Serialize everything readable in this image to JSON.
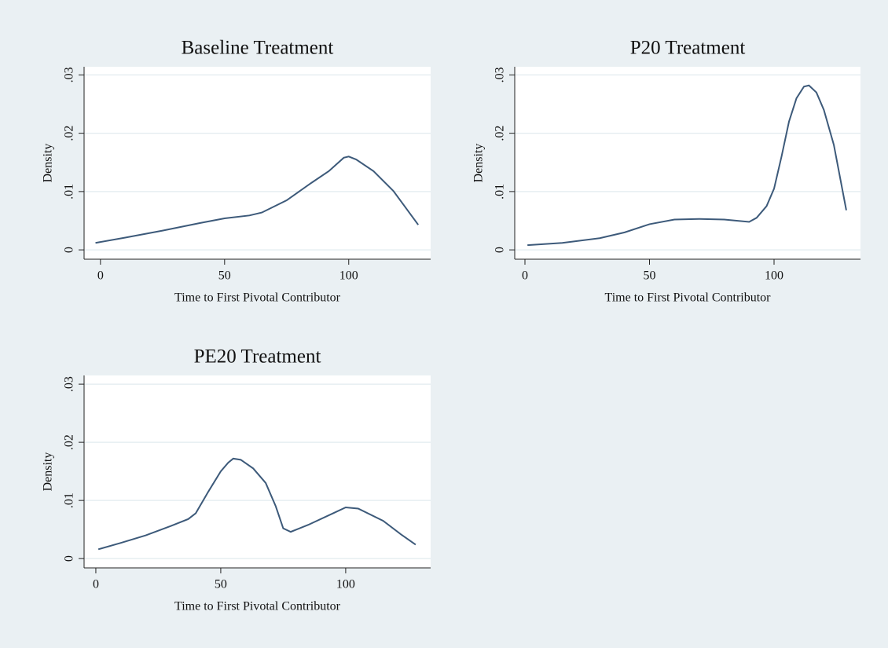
{
  "chart_data": [
    {
      "type": "line",
      "title": "Baseline Treatment",
      "xlabel": "Time to First Pivotal Contributor",
      "ylabel": "Density",
      "x": [
        -2,
        10,
        25,
        40,
        50,
        60,
        65,
        75,
        85,
        92,
        98,
        100,
        103,
        110,
        118,
        128
      ],
      "values": [
        0.0012,
        0.0021,
        0.0033,
        0.0046,
        0.0054,
        0.0059,
        0.0064,
        0.0085,
        0.0115,
        0.0135,
        0.0158,
        0.016,
        0.0155,
        0.0135,
        0.0101,
        0.0043
      ],
      "color": "#3d5a7a",
      "grid": true,
      "xlim": [
        -6.6,
        133
      ],
      "xticks": [
        0,
        50,
        100
      ],
      "ylim": [
        -0.0016,
        0.0314
      ],
      "yticks": [
        0,
        {
          "value": 0.01,
          "label": ".01"
        },
        {
          "value": 0.02,
          "label": ".02"
        },
        {
          "value": 0.03,
          "label": ".03"
        }
      ]
    },
    {
      "type": "line",
      "title": "P20 Treatment",
      "xlabel": "Time to First Pivotal Contributor",
      "ylabel": "Density",
      "x": [
        1,
        15,
        30,
        40,
        50,
        60,
        70,
        80,
        90,
        93,
        97,
        100,
        103,
        106,
        109,
        112,
        114,
        117,
        120,
        124,
        129
      ],
      "values": [
        0.0008,
        0.0012,
        0.002,
        0.003,
        0.0044,
        0.0052,
        0.0053,
        0.0052,
        0.0048,
        0.0055,
        0.0075,
        0.0105,
        0.016,
        0.022,
        0.026,
        0.028,
        0.0282,
        0.027,
        0.024,
        0.018,
        0.0068
      ],
      "color": "#3d5a7a",
      "grid": true,
      "xlim": [
        -4.1,
        134.7
      ],
      "xticks": [
        0,
        50,
        100
      ],
      "ylim": [
        -0.0016,
        0.0314
      ],
      "yticks": [
        0,
        {
          "value": 0.01,
          "label": ".01"
        },
        {
          "value": 0.02,
          "label": ".02"
        },
        {
          "value": 0.03,
          "label": ".03"
        }
      ]
    },
    {
      "type": "line",
      "title": "PE20 Treatment",
      "xlabel": "Time to First Pivotal Contributor",
      "ylabel": "Density",
      "x": [
        1,
        10,
        20,
        30,
        37,
        40,
        45,
        50,
        53,
        55,
        58,
        63,
        68,
        72,
        75,
        78,
        85,
        95,
        100,
        105,
        115,
        122,
        128
      ],
      "values": [
        0.0016,
        0.0027,
        0.004,
        0.0056,
        0.0068,
        0.0078,
        0.0115,
        0.015,
        0.0165,
        0.0172,
        0.017,
        0.0155,
        0.013,
        0.009,
        0.0052,
        0.0046,
        0.0058,
        0.0078,
        0.0088,
        0.0086,
        0.0065,
        0.0042,
        0.0024
      ],
      "color": "#3d5a7a",
      "grid": true,
      "xlim": [
        -4.7,
        134
      ],
      "xticks": [
        0,
        50,
        100
      ],
      "ylim": [
        -0.0016,
        0.0315
      ],
      "yticks": [
        0,
        {
          "value": 0.01,
          "label": ".01"
        },
        {
          "value": 0.02,
          "label": ".02"
        },
        {
          "value": 0.03,
          "label": ".03"
        }
      ]
    }
  ]
}
